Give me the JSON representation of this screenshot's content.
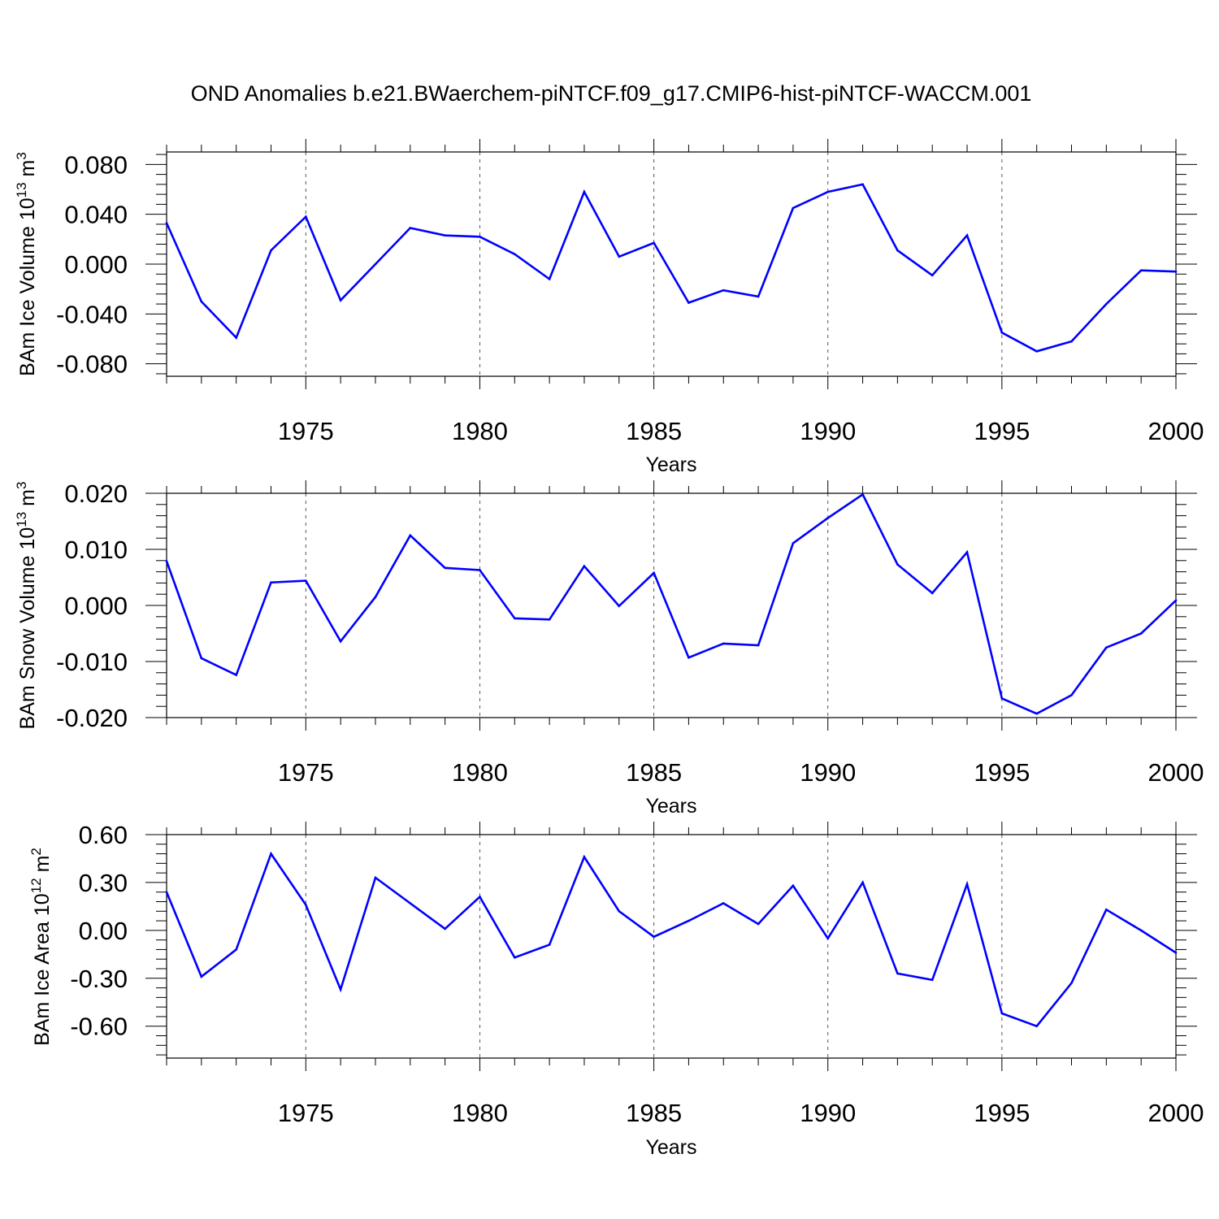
{
  "title": "OND Anomalies b.e21.BWaerchem-piNTCF.f09_g17.CMIP6-hist-piNTCF-WACCM.001",
  "line_color": "#0000ff",
  "chart_data": [
    {
      "type": "line",
      "ylabel_text": "BAm Ice Volume 10",
      "ylabel_exp": "13",
      "ylabel_unit": " m",
      "ylabel_unit_exp": "3",
      "xlabel": "Years",
      "xlim": [
        1971,
        2000
      ],
      "ylim": [
        -0.09,
        0.09
      ],
      "xticks": [
        "1975",
        "1980",
        "1985",
        "1990",
        "1995",
        "2000"
      ],
      "yticks": [
        "0.080",
        "0.040",
        "0.000",
        "-0.040",
        "-0.080"
      ],
      "grid": "dashed vertical lines at labeled years",
      "x": [
        1971,
        1972,
        1973,
        1974,
        1975,
        1976,
        1977,
        1978,
        1979,
        1980,
        1981,
        1982,
        1983,
        1984,
        1985,
        1986,
        1987,
        1988,
        1989,
        1990,
        1991,
        1992,
        1993,
        1994,
        1995,
        1996,
        1997,
        1998,
        1999,
        2000
      ],
      "values": [
        0.033,
        -0.03,
        -0.059,
        0.011,
        0.038,
        -0.029,
        0.0,
        0.029,
        0.023,
        0.022,
        0.008,
        -0.012,
        0.058,
        0.006,
        0.017,
        -0.031,
        -0.021,
        -0.026,
        0.045,
        0.058,
        0.064,
        0.011,
        -0.009,
        0.023,
        -0.055,
        -0.07,
        -0.062,
        -0.032,
        -0.005,
        -0.006
      ]
    },
    {
      "type": "line",
      "ylabel_text": "BAm Snow Volume 10",
      "ylabel_exp": "13",
      "ylabel_unit": " m",
      "ylabel_unit_exp": "3",
      "xlabel": "Years",
      "xlim": [
        1971,
        2000
      ],
      "ylim": [
        -0.02,
        0.02
      ],
      "xticks": [
        "1975",
        "1980",
        "1985",
        "1990",
        "1995",
        "2000"
      ],
      "yticks": [
        "0.020",
        "0.010",
        "0.000",
        "-0.010",
        "-0.020"
      ],
      "grid": "dashed vertical lines at labeled years",
      "x": [
        1971,
        1972,
        1973,
        1974,
        1975,
        1976,
        1977,
        1978,
        1979,
        1980,
        1981,
        1982,
        1983,
        1984,
        1985,
        1986,
        1987,
        1988,
        1989,
        1990,
        1991,
        1992,
        1993,
        1994,
        1995,
        1996,
        1997,
        1998,
        1999,
        2000
      ],
      "values": [
        0.0079,
        -0.0094,
        -0.0124,
        0.0041,
        0.0044,
        -0.0064,
        0.0015,
        0.0125,
        0.0067,
        0.0063,
        -0.0023,
        -0.0025,
        0.007,
        -0.0001,
        0.0058,
        -0.0093,
        -0.0068,
        -0.0071,
        0.0111,
        0.0156,
        0.0198,
        0.0073,
        0.0022,
        0.0095,
        -0.0166,
        -0.0193,
        -0.016,
        -0.0075,
        -0.005,
        0.0009
      ]
    },
    {
      "type": "line",
      "ylabel_text": "BAm Ice Area 10",
      "ylabel_exp": "12",
      "ylabel_unit": " m",
      "ylabel_unit_exp": "2",
      "xlabel": "Years",
      "xlim": [
        1971,
        2000
      ],
      "ylim": [
        -0.8,
        0.6
      ],
      "xticks": [
        "1975",
        "1980",
        "1985",
        "1990",
        "1995",
        "2000"
      ],
      "yticks": [
        "0.60",
        "0.30",
        "0.00",
        "-0.30",
        "-0.60"
      ],
      "grid": "dashed vertical lines at labeled years",
      "x": [
        1971,
        1972,
        1973,
        1974,
        1975,
        1976,
        1977,
        1978,
        1979,
        1980,
        1981,
        1982,
        1983,
        1984,
        1985,
        1986,
        1987,
        1988,
        1989,
        1990,
        1991,
        1992,
        1993,
        1994,
        1995,
        1996,
        1997,
        1998,
        1999,
        2000
      ],
      "values": [
        0.24,
        -0.29,
        -0.12,
        0.48,
        0.16,
        -0.37,
        0.33,
        0.17,
        0.01,
        0.21,
        -0.17,
        -0.09,
        0.46,
        0.12,
        -0.04,
        0.06,
        0.17,
        0.04,
        0.28,
        -0.05,
        0.3,
        -0.27,
        -0.31,
        0.29,
        -0.52,
        -0.6,
        -0.33,
        0.13,
        0.0,
        -0.14
      ]
    }
  ]
}
